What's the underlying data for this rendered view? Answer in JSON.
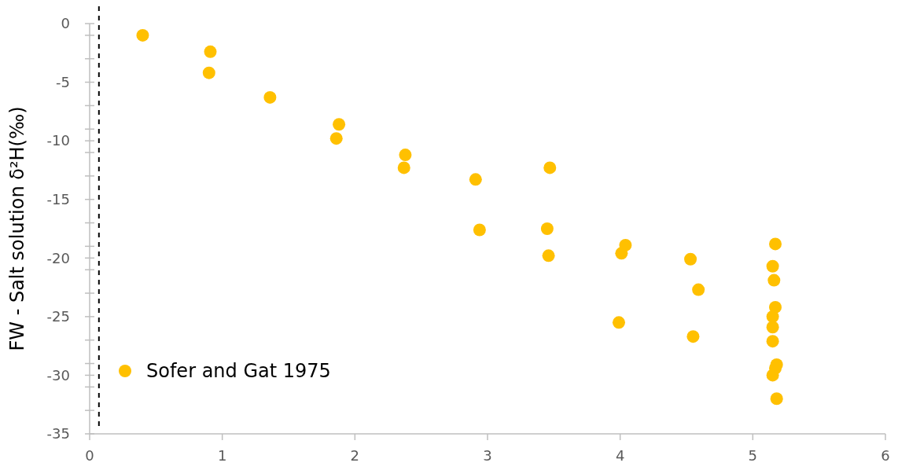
{
  "chart_data": {
    "type": "scatter",
    "ylabel": "FW - Salt solution δ²H(‰)",
    "xlim": [
      0,
      6
    ],
    "xticks": [
      0,
      1,
      2,
      3,
      4,
      5,
      6
    ],
    "ylim": [
      -35,
      0
    ],
    "yticks": [
      0,
      {
        "value": -1,
        "label": null
      },
      {
        "value": -3,
        "label": null
      },
      -5,
      {
        "value": -7,
        "label": null
      },
      {
        "value": -9,
        "label": null
      },
      -10,
      {
        "value": -11,
        "label": null
      },
      {
        "value": -13,
        "label": null
      },
      -15,
      {
        "value": -17,
        "label": null
      },
      {
        "value": -19,
        "label": null
      },
      -20,
      {
        "value": -21,
        "label": null
      },
      {
        "value": -23,
        "label": null
      },
      -25,
      {
        "value": -27,
        "label": null
      },
      {
        "value": -29,
        "label": null
      },
      -30,
      {
        "value": -31,
        "label": null
      },
      {
        "value": -33,
        "label": null
      },
      -35
    ],
    "grid": false,
    "legend": "bottom left",
    "marker": "circle",
    "ref_lines": [
      {
        "axis": "x",
        "value": 0.07,
        "color": "#000000",
        "line_style": "dashed"
      }
    ],
    "series": [
      {
        "name": "Sofer and Gat 1975",
        "color": "#ffc000",
        "x": [
          0.4,
          0.91,
          0.9,
          1.36,
          1.88,
          1.86,
          2.38,
          2.37,
          2.91,
          2.94,
          3.47,
          3.45,
          3.46,
          4.04,
          4.01,
          3.99,
          4.53,
          4.59,
          4.55,
          5.17,
          5.15,
          5.16,
          5.17,
          5.15,
          5.15,
          5.15,
          5.18,
          5.17,
          5.15,
          5.18
        ],
        "values": [
          -1.0,
          -2.4,
          -4.2,
          -6.3,
          -8.6,
          -9.8,
          -11.2,
          -12.3,
          -13.3,
          -17.6,
          -12.3,
          -17.5,
          -19.8,
          -18.9,
          -19.6,
          -25.5,
          -20.1,
          -22.7,
          -26.7,
          -18.8,
          -20.7,
          -21.9,
          -24.2,
          -25.0,
          -25.9,
          -27.1,
          -29.1,
          -29.4,
          -30.0,
          -32.0
        ]
      }
    ]
  }
}
